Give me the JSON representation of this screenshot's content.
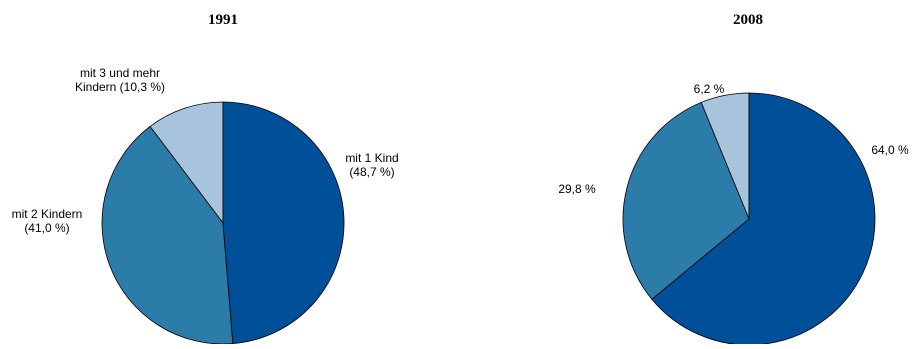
{
  "chart_data": [
    {
      "type": "pie",
      "title": "1991",
      "start": "top",
      "direction": "clockwise",
      "slices": [
        {
          "label_lines": [
            "mit 1 Kind",
            "(48,7 %)"
          ],
          "value": 48.7,
          "color": "#004f99"
        },
        {
          "label_lines": [
            "mit 2 Kindern",
            "(41,0 %)"
          ],
          "value": 41.0,
          "color": "#2b7ca9"
        },
        {
          "label_lines": [
            "mit 3 und mehr",
            "Kindern (10,3 %)"
          ],
          "value": 10.3,
          "color": "#a7c4dc"
        }
      ]
    },
    {
      "type": "pie",
      "title": "2008",
      "start": "top",
      "direction": "clockwise",
      "slices": [
        {
          "label_lines": [
            "64,0 %"
          ],
          "value": 64.0,
          "color": "#004f99"
        },
        {
          "label_lines": [
            "29,8 %"
          ],
          "value": 29.8,
          "color": "#2b7ca9"
        },
        {
          "label_lines": [
            "6,2 %"
          ],
          "value": 6.2,
          "color": "#a7c4dc"
        }
      ]
    }
  ]
}
